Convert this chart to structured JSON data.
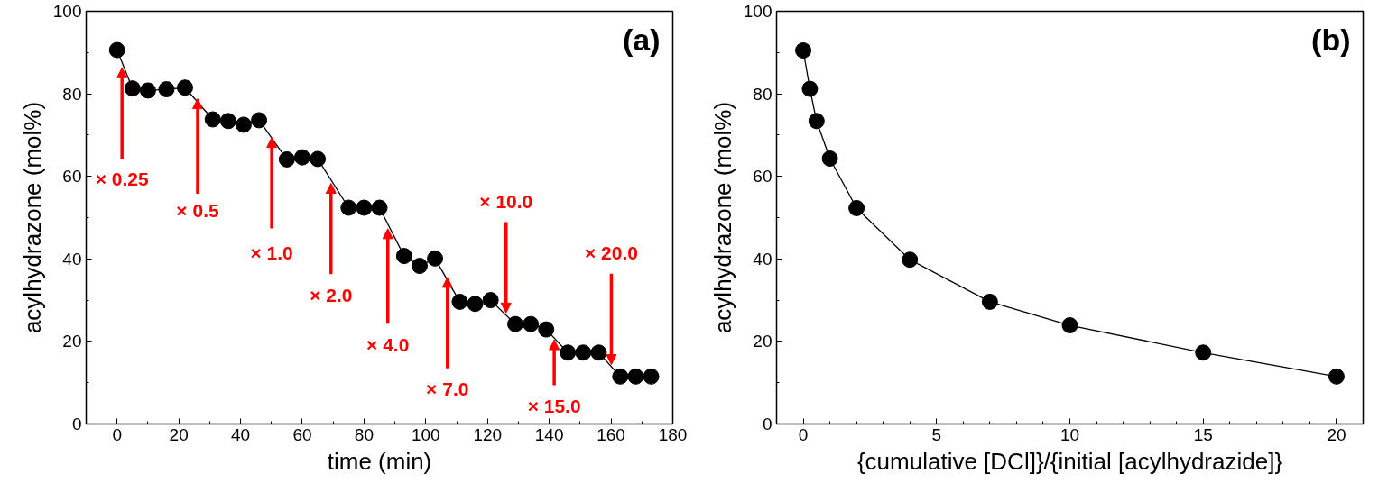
{
  "chart_data": [
    {
      "type": "line",
      "xlabel": "time (min)",
      "ylabel": "acylhydrazone (mol%)",
      "marker": "circle",
      "line_style": "solid",
      "x": [
        0,
        5,
        10,
        16,
        22,
        31,
        36,
        41,
        46,
        55,
        60,
        65,
        75,
        80,
        85,
        93,
        98,
        103,
        111,
        116,
        121,
        129,
        134,
        139,
        146,
        151,
        156,
        163,
        168,
        173
      ],
      "series": [
        {
          "color": "#000000",
          "values": [
            90.6,
            81.3,
            80.8,
            81.1,
            81.5,
            73.8,
            73.4,
            72.5,
            73.6,
            64.1,
            64.6,
            64.2,
            52.4,
            52.4,
            52.4,
            40.7,
            38.3,
            40.1,
            29.6,
            29.1,
            30.0,
            24.2,
            24.2,
            22.9,
            17.3,
            17.3,
            17.3,
            11.5,
            11.5,
            11.5
          ]
        }
      ],
      "xlim": [
        -10,
        180
      ],
      "ylim": [
        0,
        100
      ],
      "xticks": [
        0,
        {
          "value": 10,
          "label": null
        },
        20,
        {
          "value": 30,
          "label": null
        },
        40,
        {
          "value": 50,
          "label": null
        },
        60,
        {
          "value": 70,
          "label": null
        },
        80,
        {
          "value": 90,
          "label": null
        },
        100,
        {
          "value": 110,
          "label": null
        },
        120,
        {
          "value": 130,
          "label": null
        },
        140,
        {
          "value": 150,
          "label": null
        },
        160,
        {
          "value": 170,
          "label": null
        },
        180
      ],
      "yticks": [
        0,
        {
          "value": 10,
          "label": null
        },
        20,
        {
          "value": 30,
          "label": null
        },
        40,
        {
          "value": 50,
          "label": null
        },
        60,
        {
          "value": 70,
          "label": null
        },
        80,
        {
          "value": 90,
          "label": null
        },
        100
      ],
      "annotations": [
        "(a)",
        {
          "text": "× 0.25",
          "x": 1.6,
          "y": 86.3
        },
        {
          "text": "× 0.5",
          "x": 26.1,
          "y": 78.8
        },
        {
          "text": "× 1.0",
          "x": 50.1,
          "y": 69.4
        },
        {
          "text": "× 2.0",
          "x": 69.3,
          "y": 58.3
        },
        {
          "text": "× 4.0",
          "x": 87.7,
          "y": 47.3
        },
        {
          "text": "× 7.0",
          "x": 107,
          "y": 35.5
        },
        {
          "text": "× 10.0",
          "x": 126,
          "y": 26.9
        },
        {
          "text": "× 15.0",
          "x": 141.6,
          "y": 20.4
        },
        {
          "text": "× 20.0",
          "x": 160.1,
          "y": 14.4
        }
      ]
    },
    {
      "type": "line",
      "xlabel": "{cumulative [DCl]}/{initial [acylhydrazide]}",
      "ylabel": "acylhydrazone (mol%)",
      "marker": "circle",
      "line_style": "solid",
      "x": [
        0,
        0.25,
        0.5,
        1,
        2,
        4,
        7,
        10,
        15,
        20
      ],
      "series": [
        {
          "color": "#000000",
          "values": [
            90.5,
            81.2,
            73.4,
            64.3,
            52.3,
            39.8,
            29.6,
            23.9,
            17.3,
            11.5
          ]
        }
      ],
      "xlim": [
        -1,
        21
      ],
      "ylim": [
        0,
        100
      ],
      "xticks": [
        0,
        {
          "value": 1,
          "label": null
        },
        {
          "value": 2,
          "label": null
        },
        {
          "value": 3,
          "label": null
        },
        {
          "value": 4,
          "label": null
        },
        5,
        {
          "value": 6,
          "label": null
        },
        {
          "value": 7,
          "label": null
        },
        {
          "value": 8,
          "label": null
        },
        {
          "value": 9,
          "label": null
        },
        10,
        {
          "value": 11,
          "label": null
        },
        {
          "value": 12,
          "label": null
        },
        {
          "value": 13,
          "label": null
        },
        {
          "value": 14,
          "label": null
        },
        15,
        {
          "value": 16,
          "label": null
        },
        {
          "value": 17,
          "label": null
        },
        {
          "value": 18,
          "label": null
        },
        {
          "value": 19,
          "label": null
        },
        20
      ],
      "yticks": [
        0,
        {
          "value": 10,
          "label": null
        },
        20,
        {
          "value": 30,
          "label": null
        },
        40,
        {
          "value": 50,
          "label": null
        },
        60,
        {
          "value": 70,
          "label": null
        },
        80,
        {
          "value": 90,
          "label": null
        },
        100
      ],
      "annotations": [
        "(b)"
      ]
    }
  ]
}
